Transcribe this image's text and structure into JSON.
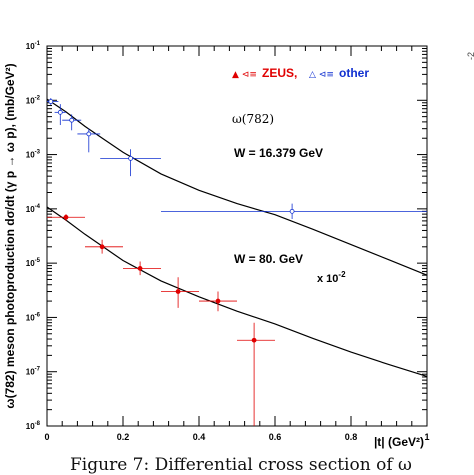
{
  "chart_data": {
    "type": "scatter",
    "xscale": "linear",
    "yscale": "log",
    "xlim": [
      0,
      1
    ],
    "ylim": [
      1e-08,
      0.1
    ],
    "xticks": [
      {
        "v": 0,
        "label": "0"
      },
      {
        "v": 0.2,
        "label": "0.2"
      },
      {
        "v": 0.4,
        "label": "0.4"
      },
      {
        "v": 0.6,
        "label": "0.6"
      },
      {
        "v": 0.8,
        "label": "0.8"
      },
      {
        "v": 1,
        "label": "1"
      }
    ],
    "yticks": [
      {
        "exp": -1,
        "base": "10",
        "sup": "-1"
      },
      {
        "exp": -2,
        "base": "10",
        "sup": "-2"
      },
      {
        "exp": -3,
        "base": "10",
        "sup": "-3"
      },
      {
        "exp": -4,
        "base": "10",
        "sup": "-4"
      },
      {
        "exp": -5,
        "base": "10",
        "sup": "-5"
      },
      {
        "exp": -6,
        "base": "10",
        "sup": "-6"
      },
      {
        "exp": -7,
        "base": "10",
        "sup": "-7"
      },
      {
        "exp": -8,
        "base": "10",
        "sup": "-8"
      }
    ],
    "xlabel": "|t| (GeV²)",
    "ylabel": "ω(782) meson photoproduction dσ/dt (γ p → ω p), (mb/GeV²)",
    "legend": {
      "position": "top-right",
      "entries": [
        {
          "name": "ZEUS,",
          "color": "#e00000",
          "symbol": "▲ ⊲≡"
        },
        {
          "name": "other",
          "color": "#1030d0",
          "symbol": "△ ⊲≡"
        }
      ]
    },
    "annotations": {
      "particle": "ω(782)",
      "w1": "W = 16.379 GeV",
      "w2": "W = 80. GeV",
      "scale_base": "x 10",
      "scale_exp": "-2"
    },
    "series": [
      {
        "name": "ZEUS,",
        "color": "#e00000",
        "marker": "filled",
        "points": [
          {
            "x": 0.05,
            "y": 7e-05,
            "xlo": 0.0,
            "xhi": 0.1,
            "ylo": 6e-05,
            "yhi": 8e-05
          },
          {
            "x": 0.145,
            "y": 2e-05,
            "xlo": 0.1,
            "xhi": 0.2,
            "ylo": 1.5e-05,
            "yhi": 2.7e-05
          },
          {
            "x": 0.245,
            "y": 8e-06,
            "xlo": 0.2,
            "xhi": 0.3,
            "ylo": 6e-06,
            "yhi": 1.07e-05
          },
          {
            "x": 0.345,
            "y": 3e-06,
            "xlo": 0.3,
            "xhi": 0.4,
            "ylo": 1.5e-06,
            "yhi": 5.5e-06
          },
          {
            "x": 0.45,
            "y": 2e-06,
            "xlo": 0.4,
            "xhi": 0.5,
            "ylo": 1.3e-06,
            "yhi": 3e-06
          },
          {
            "x": 0.545,
            "y": 3.8e-07,
            "xlo": 0.5,
            "xhi": 0.6,
            "ylo": 1e-08,
            "yhi": 8e-07
          }
        ]
      },
      {
        "name": "other",
        "color": "#1030d0",
        "marker": "open",
        "points": [
          {
            "x": 0.01,
            "y": 0.0095,
            "xlo": 0.0,
            "xhi": 0.03,
            "ylo": 0.0082,
            "yhi": 0.011
          },
          {
            "x": 0.035,
            "y": 0.006,
            "xlo": 0.02,
            "xhi": 0.05,
            "ylo": 0.0035,
            "yhi": 0.0085
          },
          {
            "x": 0.065,
            "y": 0.0043,
            "xlo": 0.04,
            "xhi": 0.09,
            "ylo": 0.0028,
            "yhi": 0.0055
          },
          {
            "x": 0.11,
            "y": 0.0024,
            "xlo": 0.08,
            "xhi": 0.14,
            "ylo": 0.0011,
            "yhi": 0.003
          },
          {
            "x": 0.22,
            "y": 0.00085,
            "xlo": 0.14,
            "xhi": 0.3,
            "ylo": 0.0004,
            "yhi": 0.00125
          },
          {
            "x": 0.645,
            "y": 9e-05,
            "xlo": 0.3,
            "xhi": 1.0,
            "ylo": 6.5e-05,
            "yhi": 0.000125
          }
        ]
      }
    ],
    "curves": [
      {
        "name": "W = 16.379 GeV fit",
        "color": "#000000",
        "x": [
          0,
          0.05,
          0.1,
          0.15,
          0.2,
          0.3,
          0.4,
          0.5,
          0.6,
          0.7,
          0.8,
          0.9,
          1.0
        ],
        "y": [
          0.0105,
          0.0061,
          0.0033,
          0.0019,
          0.0011,
          0.00044,
          0.00022,
          0.000125,
          7.8e-05,
          4.2e-05,
          2.2e-05,
          1.15e-05,
          6e-06
        ]
      },
      {
        "name": "W = 80. GeV fit",
        "color": "#000000",
        "x": [
          0,
          0.05,
          0.1,
          0.15,
          0.2,
          0.3,
          0.4,
          0.5,
          0.6,
          0.7,
          0.8,
          0.9,
          1.0
        ],
        "y": [
          0.000108,
          6.2e-05,
          3.4e-05,
          1.95e-05,
          1.12e-05,
          4.7e-06,
          2.4e-06,
          1.3e-06,
          7.6e-07,
          4.1e-07,
          2.3e-07,
          1.35e-07,
          8.2e-08
        ]
      }
    ]
  },
  "caption": "Figure 7:  Differential cross section of ω",
  "edge_mark": "-2"
}
